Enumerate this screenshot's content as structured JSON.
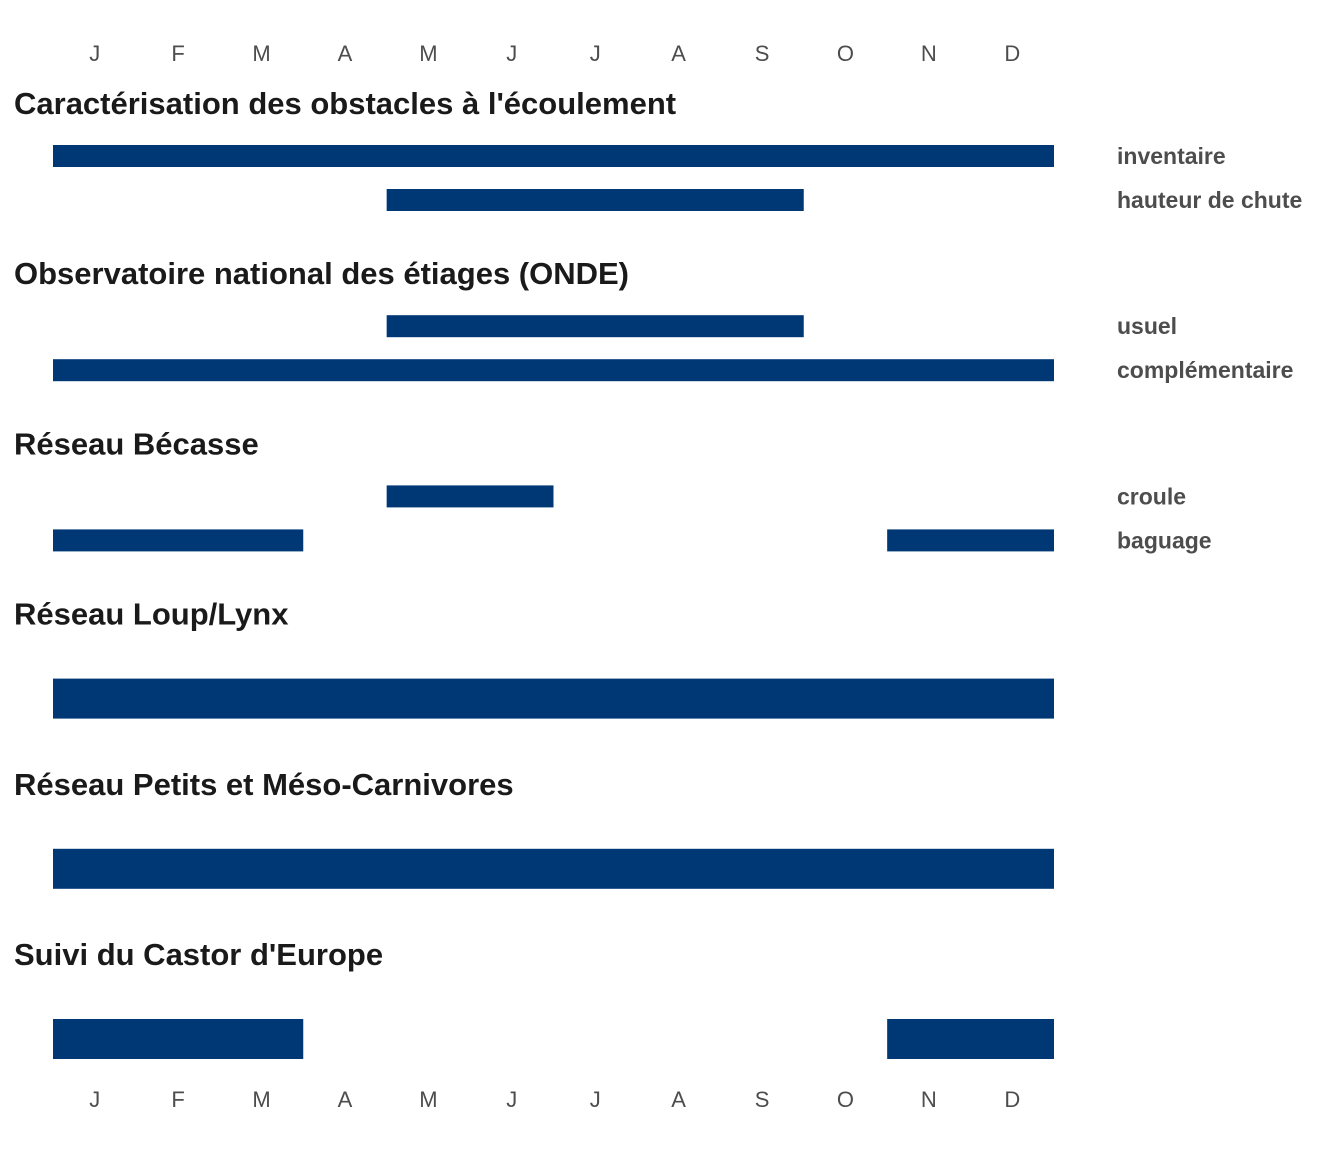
{
  "chart_data": {
    "type": "bar",
    "subtype": "gantt-calendar",
    "months": [
      "J",
      "F",
      "M",
      "A",
      "M",
      "J",
      "J",
      "A",
      "S",
      "O",
      "N",
      "D"
    ],
    "month_axis": "top and bottom",
    "bar_color": "#003876",
    "groups": [
      {
        "title": "Caractérisation des obstacles à l'écoulement",
        "rows": [
          {
            "label": "inventaire",
            "periods": [
              [
                1,
                12
              ]
            ]
          },
          {
            "label": "hauteur de chute",
            "periods": [
              [
                5,
                9
              ]
            ]
          }
        ]
      },
      {
        "title": "Observatoire national des étiages (ONDE)",
        "rows": [
          {
            "label": "usuel",
            "periods": [
              [
                5,
                9
              ]
            ]
          },
          {
            "label": "complémentaire",
            "periods": [
              [
                1,
                12
              ]
            ]
          }
        ]
      },
      {
        "title": "Réseau Bécasse",
        "rows": [
          {
            "label": "croule",
            "periods": [
              [
                5,
                6
              ]
            ]
          },
          {
            "label": "baguage",
            "periods": [
              [
                1,
                3
              ],
              [
                11,
                12
              ]
            ]
          }
        ]
      },
      {
        "title": "Réseau Loup/Lynx",
        "rows": [
          {
            "label": "",
            "periods": [
              [
                1,
                12
              ]
            ]
          }
        ]
      },
      {
        "title": "Réseau Petits et Méso-Carnivores",
        "rows": [
          {
            "label": "",
            "periods": [
              [
                1,
                12
              ]
            ]
          }
        ]
      },
      {
        "title": "Suivi du Castor d'Europe",
        "rows": [
          {
            "label": "",
            "periods": [
              [
                1,
                3
              ],
              [
                11,
                12
              ]
            ]
          }
        ]
      }
    ]
  }
}
